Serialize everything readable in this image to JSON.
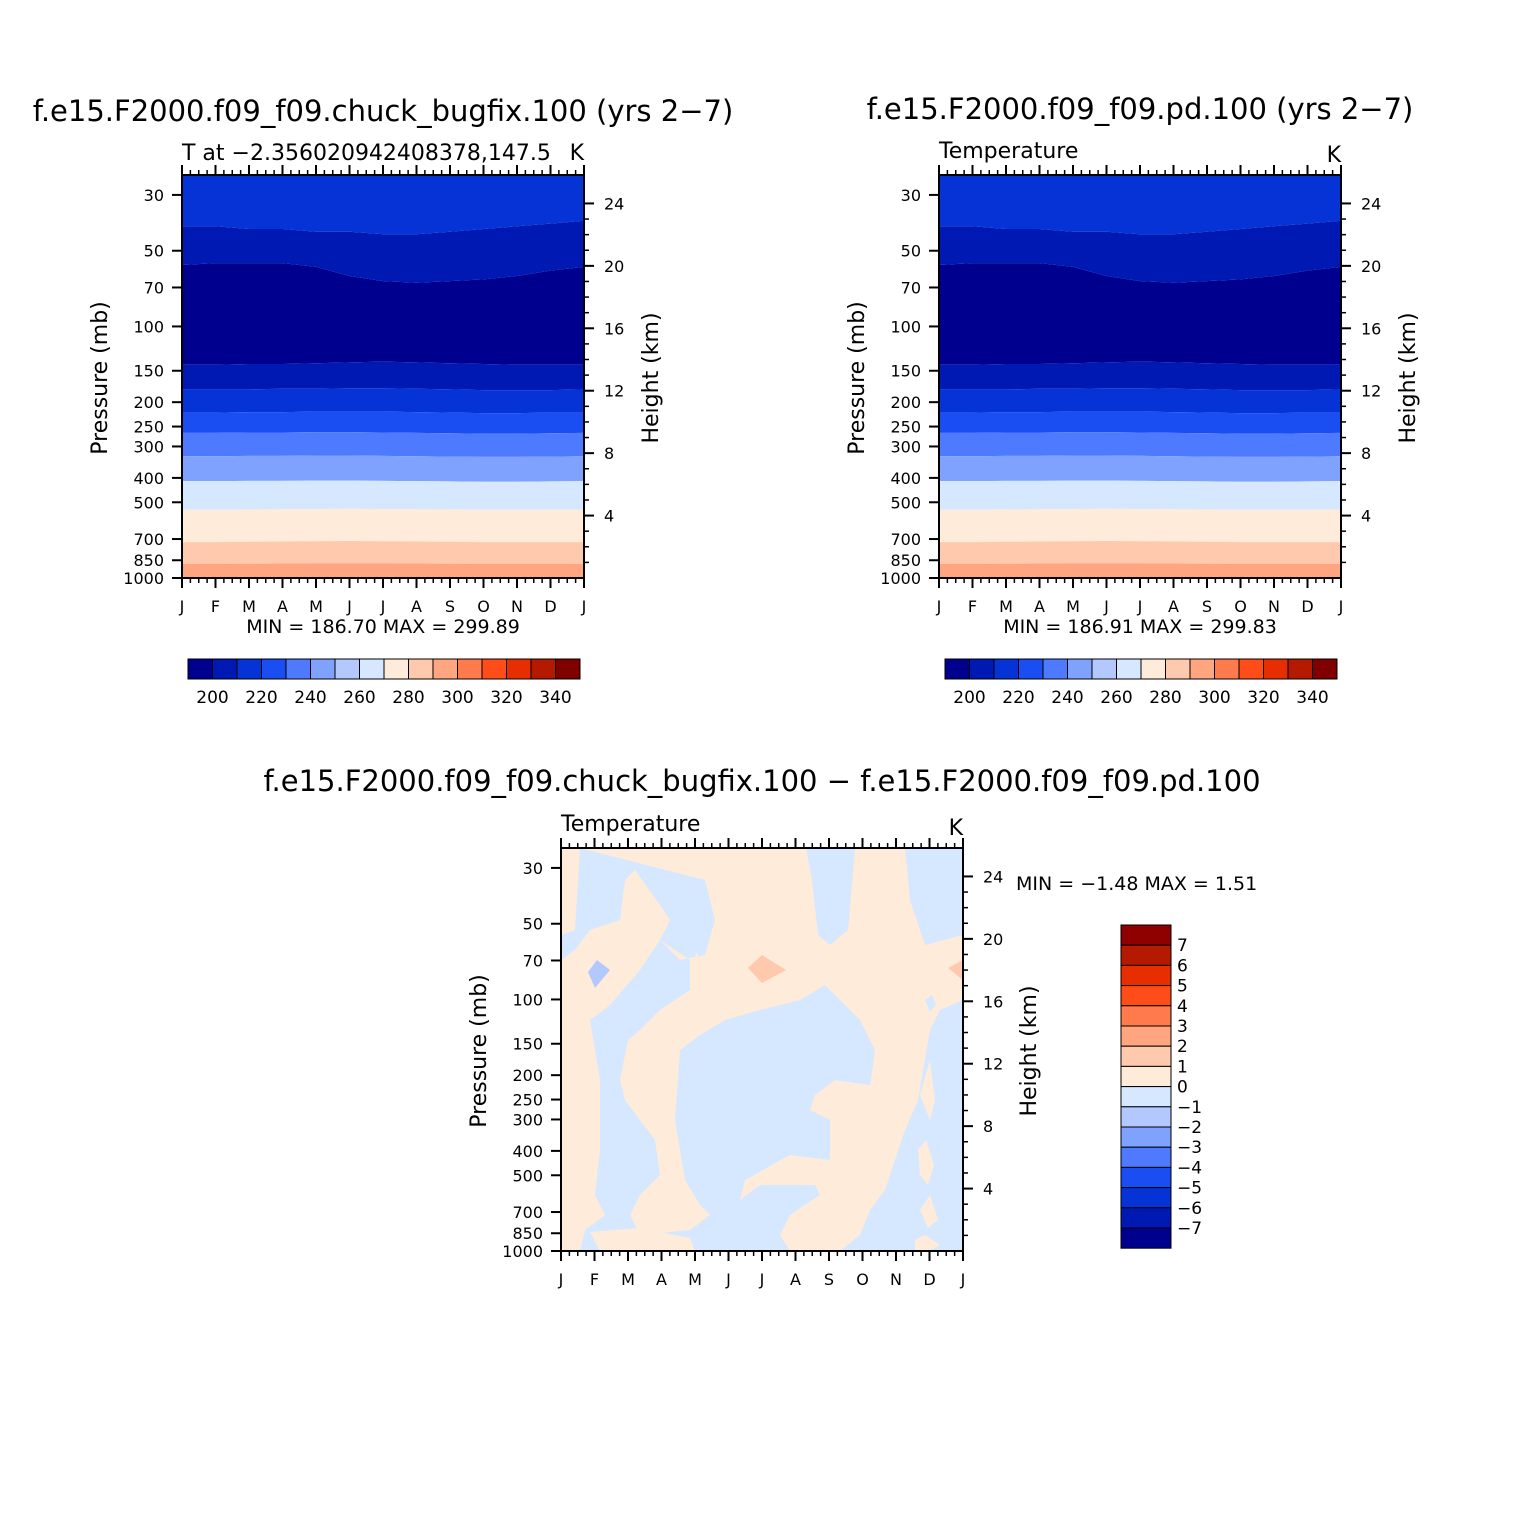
{
  "months": [
    "J",
    "F",
    "M",
    "A",
    "M",
    "J",
    "J",
    "A",
    "S",
    "O",
    "N",
    "D",
    "J"
  ],
  "pressure_ticks": [
    30,
    50,
    70,
    100,
    150,
    200,
    250,
    300,
    400,
    500,
    700,
    850,
    1000
  ],
  "height_ticks": [
    4,
    8,
    12,
    16,
    20,
    24
  ],
  "ylabel": "Pressure (mb)",
  "y2label": "Height (km)",
  "abs_colorbar": {
    "levels": [
      195,
      205,
      215,
      225,
      235,
      245,
      255,
      265,
      275,
      285,
      295,
      305,
      315,
      325,
      335,
      345
    ],
    "labels": [
      "200",
      "220",
      "240",
      "260",
      "280",
      "300",
      "320",
      "340"
    ],
    "colors": [
      "#00008f",
      "#0019b3",
      "#0533d6",
      "#1a4df2",
      "#4d7aff",
      "#80a2ff",
      "#b3c8ff",
      "#d6e8ff",
      "#ffebd9",
      "#ffc9ad",
      "#ffa680",
      "#ff7a4d",
      "#ff4d1a",
      "#e62e00",
      "#b31a00",
      "#800000"
    ]
  },
  "diff_colorbar": {
    "labels": [
      "7",
      "6",
      "5",
      "4",
      "3",
      "2",
      "1",
      "0",
      "−1",
      "−2",
      "−3",
      "−4",
      "−5",
      "−6",
      "−7"
    ],
    "colors": [
      "#8f0000",
      "#b31a00",
      "#e62e00",
      "#ff4d1a",
      "#ff7a4d",
      "#ffa680",
      "#ffc9ad",
      "#ffebd9",
      "#d6e8ff",
      "#b3c8ff",
      "#80a2ff",
      "#4d7aff",
      "#1a4df2",
      "#0533d6",
      "#0019b3",
      "#00008f"
    ]
  },
  "chart_data": [
    {
      "type": "heatmap",
      "title": "f.e15.F2000.f09_f09.chuck_bugfix.100 (yrs 2−7)",
      "subtitle_left": "T at −2.356020942408378,147.5",
      "subtitle_right": "K",
      "units": "K",
      "xlabel": "",
      "ylabel": "Pressure (mb)",
      "y2label": "Height (km)",
      "min_max_text": "MIN = 186.70 MAX = 299.89",
      "min": 186.7,
      "max": 299.89
    },
    {
      "type": "heatmap",
      "title": "f.e15.F2000.f09_f09.pd.100 (yrs 2−7)",
      "subtitle_left": "Temperature",
      "subtitle_right": "K",
      "units": "K",
      "xlabel": "",
      "ylabel": "Pressure (mb)",
      "y2label": "Height (km)",
      "min_max_text": "MIN = 186.91 MAX = 299.83",
      "min": 186.91,
      "max": 299.83
    },
    {
      "type": "heatmap",
      "title": "f.e15.F2000.f09_f09.chuck_bugfix.100 − f.e15.F2000.f09_f09.pd.100",
      "subtitle_left": "Temperature",
      "subtitle_right": "K",
      "units": "K",
      "xlabel": "",
      "ylabel": "Pressure (mb)",
      "y2label": "Height (km)",
      "min_max_text": "MIN = −1.48 MAX = 1.51",
      "min": -1.48,
      "max": 1.51
    }
  ]
}
